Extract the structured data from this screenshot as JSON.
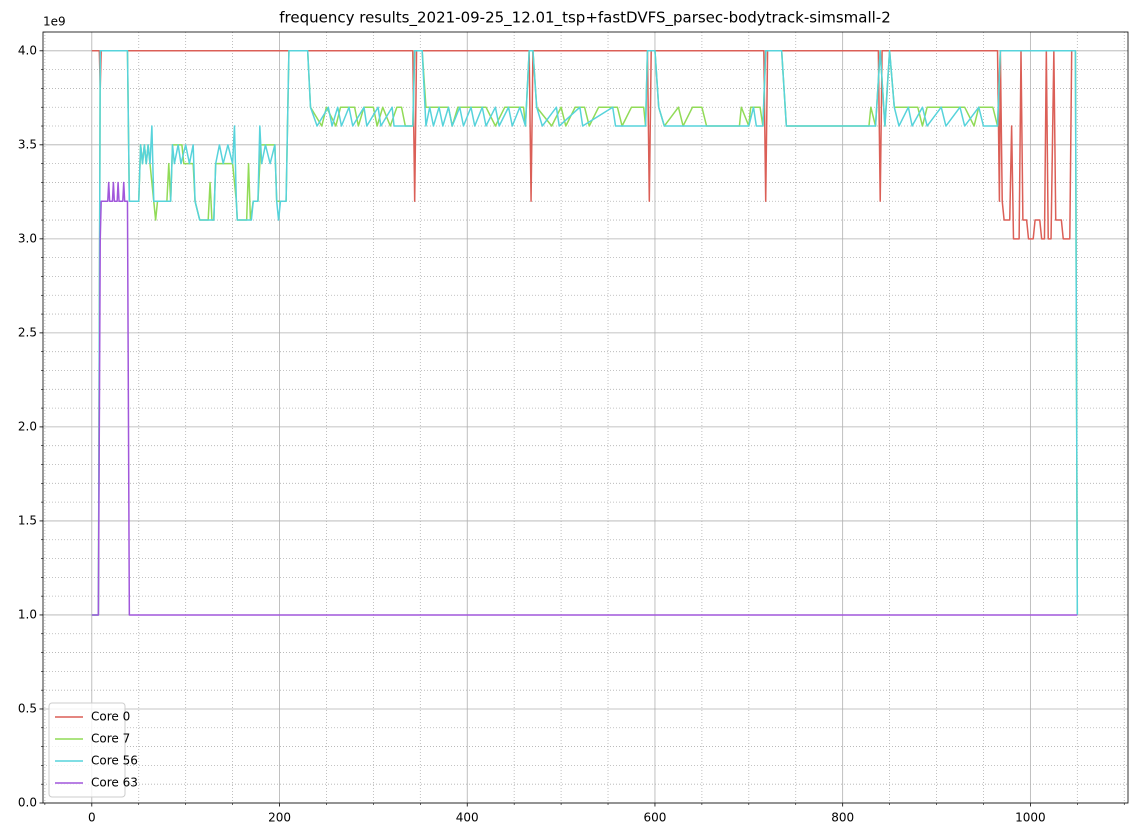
{
  "chart_data": {
    "type": "line",
    "title": "frequency results_2021-09-25_12.01_tsp+fastDVFS_parsec-bodytrack-simsmall-2",
    "y_offset_label": "1e9",
    "xlim": [
      -52,
      1104
    ],
    "ylim": [
      0,
      4.1
    ],
    "xticks": [
      0,
      200,
      400,
      600,
      800,
      1000
    ],
    "yticks": [
      {
        "value": 0,
        "label": "0.0"
      },
      {
        "value": 0.5,
        "label": "0.5"
      },
      {
        "value": 1,
        "label": "1.0"
      },
      {
        "value": 1.5,
        "label": "1.5"
      },
      {
        "value": 2,
        "label": "2.0"
      },
      {
        "value": 2.5,
        "label": "2.5"
      },
      {
        "value": 3,
        "label": "3.0"
      },
      {
        "value": 3.5,
        "label": "3.5"
      },
      {
        "value": 4,
        "label": "4.0"
      }
    ],
    "xminorticks": [
      -50,
      50,
      100,
      150,
      250,
      300,
      350,
      450,
      500,
      550,
      650,
      700,
      750,
      850,
      900,
      950,
      1050,
      1100
    ],
    "yminorticks": [
      0.1,
      0.2,
      0.3,
      0.4,
      0.6,
      0.7,
      0.8,
      0.9,
      1.1,
      1.2,
      1.3,
      1.4,
      1.6,
      1.7,
      1.8,
      1.9,
      2.1,
      2.2,
      2.3,
      2.4,
      2.6,
      2.7,
      2.8,
      2.9,
      3.1,
      3.2,
      3.3,
      3.4,
      3.6,
      3.7,
      3.8,
      3.9
    ],
    "grid": true,
    "minor_grid": true,
    "legend": "lower left",
    "series": [
      {
        "name": "Core 0",
        "color": "#db5f57",
        "x": [
          0,
          8,
          9,
          10,
          342,
          344,
          346,
          466,
          468,
          470,
          592,
          594,
          596,
          716,
          718,
          720,
          838,
          840,
          842,
          965,
          967,
          968,
          970,
          972,
          978,
          980,
          982,
          988,
          990,
          992,
          996,
          998,
          1003,
          1005,
          1010,
          1012,
          1015,
          1017,
          1019,
          1022,
          1025,
          1027,
          1033,
          1035,
          1042,
          1044,
          1046
        ],
        "values": [
          4.0,
          4.0,
          3.8,
          4.0,
          4.0,
          3.2,
          4.0,
          4.0,
          3.2,
          4.0,
          4.0,
          3.2,
          4.0,
          4.0,
          3.2,
          4.0,
          4.0,
          3.2,
          4.0,
          4.0,
          3.2,
          4.0,
          3.2,
          3.1,
          3.1,
          3.6,
          3.0,
          3.0,
          4.0,
          3.1,
          3.1,
          3.0,
          3.0,
          3.1,
          3.1,
          3.0,
          3.0,
          4.0,
          3.0,
          3.0,
          4.0,
          3.1,
          3.1,
          3.0,
          3.0,
          4.0,
          4.0
        ]
      },
      {
        "name": "Core 7",
        "color": "#91db57",
        "x": [
          0,
          7,
          9,
          38,
          40,
          50,
          52,
          54,
          56,
          58,
          60,
          62,
          66,
          68,
          70,
          80,
          82,
          84,
          86,
          96,
          98,
          108,
          110,
          115,
          124,
          126,
          128,
          130,
          132,
          150,
          154,
          155,
          165,
          167,
          169,
          172,
          177,
          180,
          195,
          197,
          201,
          207,
          210,
          230,
          233,
          245,
          250,
          260,
          265,
          280,
          284,
          290,
          300,
          304,
          310,
          318,
          325,
          330,
          334,
          342,
          344,
          352,
          356,
          380,
          384,
          390,
          420,
          430,
          440,
          460,
          462,
          466,
          470,
          474,
          490,
          500,
          505,
          515,
          525,
          530,
          540,
          560,
          565,
          575,
          588,
          590,
          592,
          600,
          604,
          610,
          625,
          630,
          640,
          650,
          655,
          690,
          692,
          700,
          702,
          712,
          715,
          718,
          735,
          740,
          828,
          830,
          835,
          840,
          845,
          850,
          855,
          880,
          885,
          890,
          930,
          940,
          945,
          960,
          965,
          968,
          1048,
          1050
        ],
        "values": [
          1.0,
          1.0,
          4.0,
          4.0,
          3.2,
          3.2,
          3.5,
          3.4,
          3.5,
          3.4,
          3.5,
          3.4,
          3.2,
          3.1,
          3.2,
          3.2,
          3.4,
          3.2,
          3.5,
          3.5,
          3.4,
          3.4,
          3.2,
          3.1,
          3.1,
          3.3,
          3.1,
          3.1,
          3.4,
          3.4,
          3.2,
          3.1,
          3.1,
          3.4,
          3.1,
          3.2,
          3.2,
          3.5,
          3.5,
          3.2,
          3.2,
          3.2,
          4.0,
          4.0,
          3.7,
          3.6,
          3.7,
          3.6,
          3.7,
          3.7,
          3.6,
          3.7,
          3.7,
          3.6,
          3.7,
          3.6,
          3.7,
          3.7,
          3.6,
          3.6,
          4.0,
          4.0,
          3.7,
          3.7,
          3.6,
          3.7,
          3.7,
          3.6,
          3.7,
          3.7,
          3.6,
          4.0,
          4.0,
          3.7,
          3.6,
          3.7,
          3.6,
          3.7,
          3.7,
          3.6,
          3.7,
          3.7,
          3.6,
          3.7,
          3.7,
          3.6,
          4.0,
          4.0,
          3.7,
          3.6,
          3.7,
          3.6,
          3.7,
          3.7,
          3.6,
          3.6,
          3.7,
          3.6,
          3.7,
          3.7,
          3.6,
          4.0,
          4.0,
          3.6,
          3.6,
          3.7,
          3.6,
          4.0,
          3.6,
          4.0,
          3.7,
          3.7,
          3.6,
          3.7,
          3.7,
          3.6,
          3.7,
          3.7,
          3.6,
          4.0,
          4.0,
          1.0
        ]
      },
      {
        "name": "Core 56",
        "color": "#57d3db",
        "x": [
          0,
          7,
          9,
          38,
          40,
          50,
          52,
          54,
          56,
          58,
          60,
          62,
          64,
          66,
          84,
          86,
          88,
          92,
          95,
          100,
          104,
          108,
          110,
          115,
          130,
          132,
          136,
          140,
          145,
          150,
          152,
          154,
          155,
          170,
          172,
          177,
          179,
          181,
          185,
          190,
          195,
          197,
          199,
          201,
          207,
          210,
          230,
          233,
          240,
          252,
          256,
          262,
          266,
          274,
          278,
          290,
          293,
          305,
          308,
          320,
          322,
          342,
          344,
          352,
          356,
          360,
          364,
          370,
          374,
          380,
          384,
          392,
          396,
          404,
          408,
          416,
          420,
          430,
          434,
          444,
          448,
          456,
          462,
          466,
          470,
          474,
          480,
          495,
          498,
          520,
          523,
          555,
          558,
          590,
          592,
          600,
          604,
          610,
          700,
          705,
          708,
          715,
          718,
          735,
          740,
          835,
          840,
          845,
          850,
          855,
          860,
          870,
          874,
          885,
          890,
          905,
          910,
          925,
          930,
          945,
          950,
          965,
          968,
          1048,
          1050
        ],
        "values": [
          1.0,
          1.0,
          4.0,
          4.0,
          3.2,
          3.2,
          3.5,
          3.4,
          3.5,
          3.4,
          3.5,
          3.4,
          3.6,
          3.2,
          3.2,
          3.5,
          3.4,
          3.5,
          3.4,
          3.5,
          3.4,
          3.5,
          3.2,
          3.1,
          3.1,
          3.4,
          3.5,
          3.4,
          3.5,
          3.4,
          3.6,
          3.2,
          3.1,
          3.1,
          3.2,
          3.2,
          3.6,
          3.4,
          3.5,
          3.4,
          3.5,
          3.2,
          3.1,
          3.2,
          3.2,
          4.0,
          4.0,
          3.7,
          3.6,
          3.7,
          3.6,
          3.7,
          3.6,
          3.7,
          3.6,
          3.7,
          3.6,
          3.7,
          3.6,
          3.7,
          3.6,
          3.6,
          4.0,
          4.0,
          3.6,
          3.7,
          3.6,
          3.7,
          3.6,
          3.7,
          3.6,
          3.7,
          3.6,
          3.7,
          3.6,
          3.7,
          3.6,
          3.7,
          3.6,
          3.7,
          3.6,
          3.7,
          3.6,
          4.0,
          4.0,
          3.7,
          3.6,
          3.7,
          3.6,
          3.7,
          3.6,
          3.7,
          3.6,
          3.6,
          4.0,
          4.0,
          3.7,
          3.6,
          3.6,
          3.7,
          3.6,
          3.6,
          4.0,
          4.0,
          3.6,
          3.6,
          4.0,
          3.6,
          4.0,
          3.7,
          3.6,
          3.7,
          3.6,
          3.7,
          3.6,
          3.7,
          3.6,
          3.7,
          3.6,
          3.7,
          3.6,
          3.6,
          4.0,
          4.0,
          1.0
        ]
      },
      {
        "name": "Core 63",
        "color": "#a157db",
        "x": [
          0,
          7,
          9,
          10,
          17,
          18,
          19,
          22,
          23,
          24,
          27,
          28,
          29,
          33,
          34,
          35,
          38,
          40,
          1050
        ],
        "values": [
          1.0,
          1.0,
          3.0,
          3.2,
          3.2,
          3.3,
          3.2,
          3.2,
          3.3,
          3.2,
          3.2,
          3.3,
          3.2,
          3.2,
          3.3,
          3.2,
          3.2,
          1.0,
          1.0
        ]
      }
    ]
  }
}
